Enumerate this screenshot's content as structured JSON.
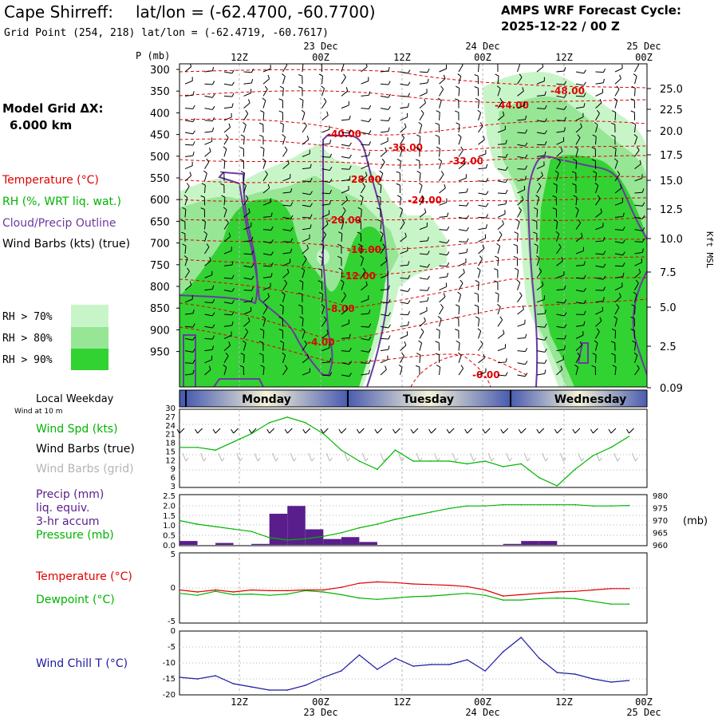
{
  "header": {
    "station": "Cape Shirreff:",
    "latlon": "lat/lon = (-62.4700, -60.7700)",
    "gridpoint": "Grid Point (254, 218) lat/lon = (-62.4719, -60.7617)",
    "cycle_title": "AMPS WRF Forecast Cycle:",
    "cycle_value": "2025-12-22 / 00  Z"
  },
  "left_panel": {
    "model_grid_label": "Model Grid ΔX:",
    "model_grid_value": "6.000 km",
    "legend_temperature": "Temperature (°C)",
    "legend_rh": "RH (%, WRT liq. wat.)",
    "legend_cloud": "Cloud/Precip Outline",
    "legend_wind": "Wind Barbs (kts) (true)",
    "rh_keys": [
      {
        "label": "RH > 70%",
        "color": "#c8f5c8"
      },
      {
        "label": "RH > 80%",
        "color": "#96e696"
      },
      {
        "label": "RH > 90%",
        "color": "#32d232"
      }
    ]
  },
  "colors": {
    "temperature": "#e00000",
    "rh_text": "#00b400",
    "cloud": "#6a3aa0",
    "wind": "#000000",
    "wind_grid": "#b4b4b4",
    "pressure": "#00b400",
    "precip": "#5a1e8c",
    "windchill": "#1a1aa0",
    "dew": "#00b400",
    "grid": "#b4b4b4"
  },
  "time_axis": {
    "top_date_labels": [
      "23 Dec",
      "24 Dec",
      "25 Dec"
    ],
    "top_hour_labels": [
      "12Z",
      "00Z",
      "12Z",
      "00Z",
      "12Z",
      "00Z"
    ],
    "bottom_hour_labels": [
      "12Z",
      "00Z",
      "12Z",
      "00Z",
      "12Z",
      "00Z"
    ],
    "bottom_date_labels": [
      "23 Dec",
      "24 Dec",
      "25 Dec"
    ]
  },
  "cross_section": {
    "y_title": "P (mb)",
    "pressure_levels": [
      "300",
      "350",
      "400",
      "450",
      "500",
      "550",
      "600",
      "650",
      "700",
      "750",
      "800",
      "850",
      "900",
      "950"
    ],
    "height_labels": [
      "25.0",
      "22.5",
      "20.0",
      "17.5",
      "15.0",
      "12.5",
      "10.0",
      "7.5",
      "5.0",
      "2.5",
      "0.09"
    ],
    "right_axis_title": "Kft MSL",
    "temperature_contours": [
      "-48.00",
      "-44.00",
      "-40.00",
      "-36.00",
      "-32.00",
      "-28.00",
      "-24.00",
      "-20.00",
      "-16.00",
      "-12.00",
      "-8.00",
      "-4.00",
      "-0.00"
    ]
  },
  "weekday_bar": {
    "title": "Local Weekday",
    "days": [
      "Monday",
      "Tuesday",
      "Wednesday"
    ]
  },
  "wind_panel": {
    "subtitle": "Wind at 10 m",
    "label_speed": "Wind Spd (kts)",
    "label_barbs_true": "Wind Barbs (true)",
    "label_barbs_grid": "Wind Barbs (grid)",
    "y_ticks": [
      "30",
      "27",
      "24",
      "21",
      "18",
      "15",
      "12",
      "9",
      "6",
      "3"
    ]
  },
  "precip_panel": {
    "label_precip": "Precip (mm)",
    "label_liq": "liq. equiv.",
    "label_accum": "3-hr accum",
    "label_pressure": "Pressure (mb)",
    "left_ticks": [
      "2.5",
      "2.0",
      "1.5",
      "1.0",
      "0.5",
      "0.0"
    ],
    "right_ticks": [
      "980",
      "975",
      "970",
      "965",
      "960"
    ],
    "right_unit": "(mb)"
  },
  "temp_panel": {
    "label_temperature": "Temperature (°C)",
    "label_dewpoint": "Dewpoint (°C)",
    "y_ticks": [
      "5",
      "0",
      "-5"
    ]
  },
  "windchill_panel": {
    "label": "Wind Chill T (°C)",
    "y_ticks": [
      "0",
      "-5",
      "-10",
      "-15",
      "-20"
    ]
  },
  "chart_data": [
    {
      "type": "line",
      "title": "Wind Spd (kts)",
      "x_hours": [
        0,
        3,
        6,
        9,
        12,
        15,
        18,
        21,
        24,
        27,
        30,
        33,
        36,
        39,
        42,
        45,
        48,
        51,
        54,
        57,
        60,
        63,
        66,
        69,
        72,
        75
      ],
      "ylim": [
        3,
        30
      ],
      "series": [
        {
          "name": "Wind Spd (kts)",
          "values": [
            17,
            17,
            16,
            19,
            22,
            26,
            28,
            26,
            22,
            16,
            12,
            9,
            16,
            12,
            12,
            12,
            11,
            12,
            10,
            11,
            6,
            3,
            9,
            14,
            17,
            21
          ]
        }
      ]
    },
    {
      "type": "bar",
      "title": "Precip (mm)",
      "x_start_hours": [
        0,
        6,
        12,
        15,
        18,
        21,
        24,
        27,
        30,
        54,
        57,
        60
      ],
      "ylim": [
        0,
        2.5
      ],
      "values": [
        0.2,
        0.1,
        0.05,
        1.6,
        2.0,
        0.8,
        0.3,
        0.4,
        0.15,
        0.05,
        0.2,
        0.2
      ]
    },
    {
      "type": "line",
      "title": "Pressure (mb)",
      "x_hours": [
        0,
        3,
        6,
        9,
        12,
        15,
        18,
        21,
        24,
        27,
        30,
        33,
        36,
        39,
        42,
        45,
        48,
        51,
        54,
        57,
        60,
        63,
        66,
        69,
        72,
        75
      ],
      "ylim": [
        960,
        980
      ],
      "series": [
        {
          "name": "Pressure (mb)",
          "values": [
            970,
            968.5,
            967.5,
            966.5,
            965.5,
            963,
            962,
            962.5,
            963.5,
            965,
            967,
            968.5,
            970.5,
            972,
            973.5,
            975,
            976,
            976,
            976.5,
            976.5,
            976.5,
            976.5,
            976.5,
            976,
            976,
            976.2
          ]
        }
      ]
    },
    {
      "type": "line",
      "title": "Temperature (°C)",
      "x_hours": [
        0,
        3,
        6,
        9,
        12,
        15,
        18,
        21,
        24,
        27,
        30,
        33,
        36,
        39,
        42,
        45,
        48,
        51,
        54,
        57,
        60,
        63,
        66,
        69,
        72,
        75
      ],
      "ylim": [
        -5,
        5
      ],
      "series": [
        {
          "name": "Temperature (°C)",
          "values": [
            -0.3,
            -0.6,
            -0.3,
            -0.6,
            -0.3,
            -0.4,
            -0.4,
            -0.3,
            -0.3,
            0.1,
            0.7,
            0.9,
            0.8,
            0.6,
            0.5,
            0.4,
            0.2,
            -0.3,
            -1.2,
            -1.0,
            -0.8,
            -0.6,
            -0.5,
            -0.3,
            -0.1,
            -0.1
          ]
        },
        {
          "name": "Dewpoint (°C)",
          "values": [
            -0.8,
            -1.1,
            -0.5,
            -1.0,
            -0.9,
            -1.1,
            -0.9,
            -0.4,
            -0.6,
            -1.0,
            -1.5,
            -1.7,
            -1.5,
            -1.3,
            -1.2,
            -1.0,
            -0.8,
            -1.1,
            -1.8,
            -1.8,
            -1.6,
            -1.5,
            -1.6,
            -2.0,
            -2.4,
            -2.4
          ]
        }
      ]
    },
    {
      "type": "line",
      "title": "Wind Chill T (°C)",
      "x_hours": [
        0,
        3,
        6,
        9,
        12,
        15,
        18,
        21,
        24,
        27,
        30,
        33,
        36,
        39,
        42,
        45,
        48,
        51,
        54,
        57,
        60,
        63,
        66,
        69,
        72,
        75
      ],
      "ylim": [
        -20,
        0
      ],
      "series": [
        {
          "name": "Wind Chill T (°C)",
          "values": [
            -14.5,
            -15,
            -14,
            -16.5,
            -17.5,
            -18.5,
            -18.5,
            -17,
            -14.5,
            -12.5,
            -7.5,
            -12,
            -8.5,
            -11,
            -10.5,
            -10.5,
            -9,
            -12.5,
            -6.5,
            -2,
            -8.5,
            -13,
            -13.5,
            -15,
            -16,
            -15.5
          ]
        }
      ]
    }
  ]
}
